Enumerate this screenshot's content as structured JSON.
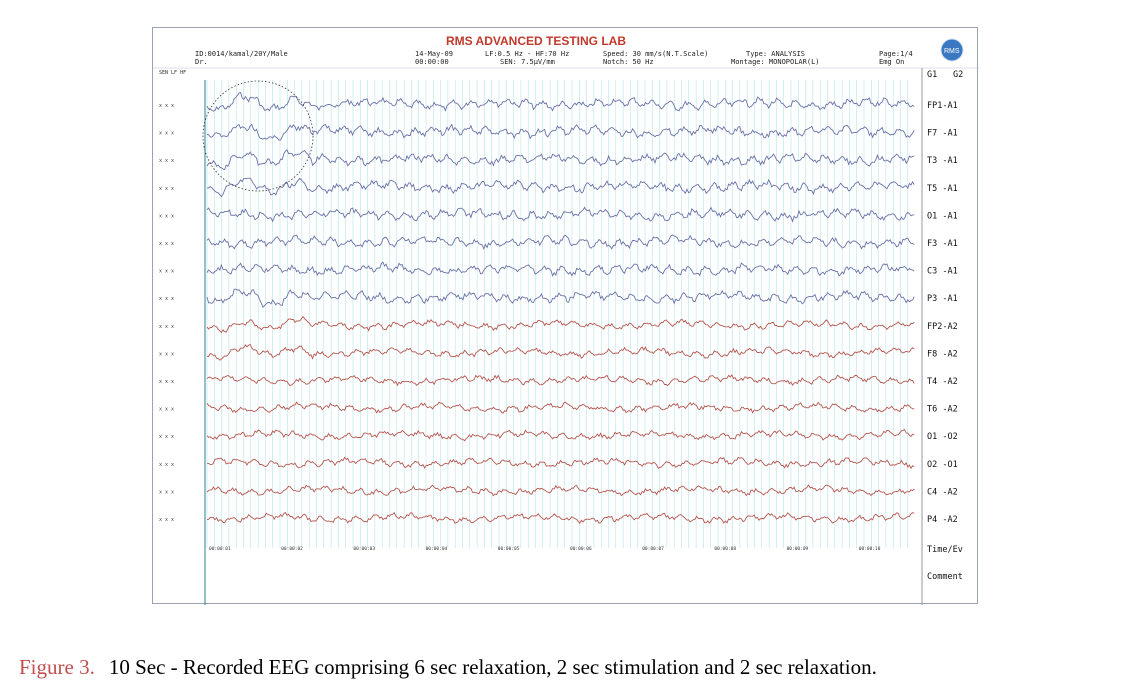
{
  "lab_title": "RMS ADVANCED TESTING LAB",
  "logo_text": "RMS",
  "header": {
    "id": "ID:0014/kamal/20Y/Male",
    "dr": "Dr.",
    "date": "14-May-09",
    "time": "00:00:00",
    "lf_hf": "LF:0.5 Hz - HF:70 Hz",
    "sen": "SEN: 7.5µV/mm",
    "speed": "Speed: 30 mm/s(N.T.Scale)",
    "notch": "Notch: 50 Hz",
    "type": "Type: ANALYSIS",
    "montage": "Montage: MONOPOLAR(L)",
    "page": "Page:1/4",
    "emg": "Emg On"
  },
  "col_headers": {
    "left": "SEN LF HF",
    "g1": "G1",
    "g2": "G2"
  },
  "channels": [
    {
      "label": "FP1-A1",
      "group": "A1"
    },
    {
      "label": "F7 -A1",
      "group": "A1"
    },
    {
      "label": "T3 -A1",
      "group": "A1"
    },
    {
      "label": "T5 -A1",
      "group": "A1"
    },
    {
      "label": "O1 -A1",
      "group": "A1"
    },
    {
      "label": "F3 -A1",
      "group": "A1"
    },
    {
      "label": "C3 -A1",
      "group": "A1"
    },
    {
      "label": "P3 -A1",
      "group": "A1"
    },
    {
      "label": "FP2-A2",
      "group": "A2"
    },
    {
      "label": "F8 -A2",
      "group": "A2"
    },
    {
      "label": "T4 -A2",
      "group": "A2"
    },
    {
      "label": "T6 -A2",
      "group": "A2"
    },
    {
      "label": "O1 -O2",
      "group": "A2"
    },
    {
      "label": "O2 -O1",
      "group": "A2"
    },
    {
      "label": "C4 -A2",
      "group": "A2"
    },
    {
      "label": "P4 -A2",
      "group": "A2"
    }
  ],
  "side_markers": "x  x  x",
  "time_ticks": [
    "00:00:01",
    "00:00:02",
    "00:00:03",
    "00:00:04",
    "00:00:05",
    "00:00:06",
    "00:00:07",
    "00:00:08",
    "00:00:09",
    "00:00:10"
  ],
  "footer_rows": [
    "Time/Ev",
    "Comment"
  ],
  "colors": {
    "left_traces": "#6a72a8",
    "right_traces": "#b5574f",
    "grid": "#7fd3df",
    "title": "#c0392b",
    "logo": "#3a78c2"
  },
  "caption": {
    "label": "Figure 3.",
    "text": "10 Sec - Recorded EEG comprising 6 sec relaxation, 2 sec stimulation and 2 sec relaxation."
  }
}
